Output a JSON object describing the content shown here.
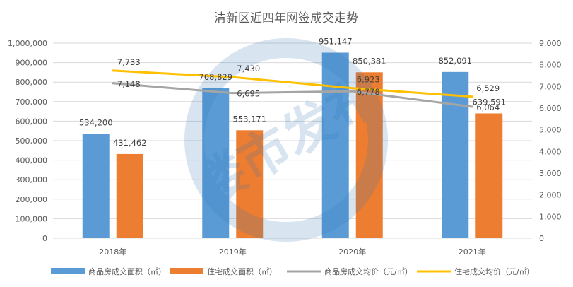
{
  "chart_data": {
    "type": "bar",
    "title": "清新区近四年网签成交走势",
    "categories": [
      "2018年",
      "2019年",
      "2020年",
      "2021年"
    ],
    "y_left": {
      "range": [
        0,
        1000000
      ],
      "ticks": [
        "0",
        "100,000",
        "200,000",
        "300,000",
        "400,000",
        "500,000",
        "600,000",
        "700,000",
        "800,000",
        "900,000",
        "1,000,000"
      ]
    },
    "y_right": {
      "range": [
        0,
        9000
      ],
      "ticks": [
        "0",
        "1,000",
        "2,000",
        "3,000",
        "4,000",
        "5,000",
        "6,000",
        "7,000",
        "8,000",
        "9,000"
      ]
    },
    "grid": true,
    "legend_position": "bottom",
    "series": [
      {
        "name": "商品房成交面积（㎡）",
        "type": "bar",
        "axis": "left",
        "color": "#5B9BD5",
        "values": [
          534200,
          768829,
          951147,
          852091
        ],
        "labels": [
          "534,200",
          "768,829",
          "951,147",
          "852,091"
        ]
      },
      {
        "name": "住宅成交面积（㎡）",
        "type": "bar",
        "axis": "left",
        "color": "#ED7D31",
        "values": [
          431462,
          553171,
          850381,
          639591
        ],
        "labels": [
          "431,462",
          "553,171",
          "850,381",
          "639,591"
        ]
      },
      {
        "name": "商品房成交均价（元/㎡）",
        "type": "line",
        "axis": "right",
        "color": "#A5A5A5",
        "values": [
          7148,
          6695,
          6778,
          6064
        ],
        "labels": [
          "7,148",
          "6,695",
          "6,778",
          "6,064"
        ]
      },
      {
        "name": "住宅成交均价（元/㎡）",
        "type": "line",
        "axis": "right",
        "color": "#FFC000",
        "values": [
          7733,
          7430,
          6923,
          6529
        ],
        "labels": [
          "7,733",
          "7,430",
          "6,923",
          "6,529"
        ]
      }
    ],
    "watermark": "楼市发布"
  }
}
